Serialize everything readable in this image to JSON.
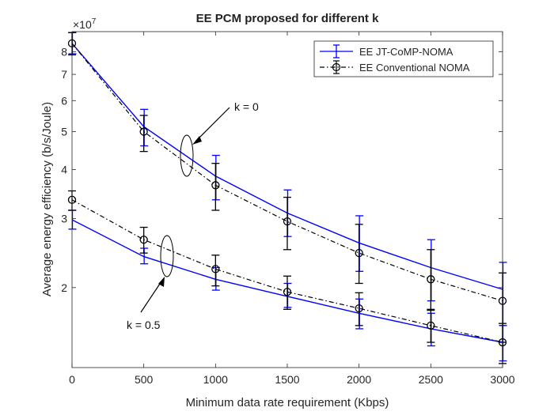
{
  "chart_data": {
    "type": "line",
    "title": "EE PCM proposed for different k",
    "xlabel": "Minimum data rate requirement (Kbps)",
    "ylabel": "Average energy efficiency (b/s/Joule)",
    "y_multiplier": "×10",
    "y_multiplier_exp": "7",
    "y_scale": "log",
    "xlim": [
      0,
      3000
    ],
    "ylim": [
      1.25,
      9.0
    ],
    "x_ticks": [
      0,
      500,
      1000,
      1500,
      2000,
      2500,
      3000
    ],
    "x_tick_labels": [
      "0",
      "500",
      "1000",
      "1500",
      "2000",
      "2500",
      "3000"
    ],
    "y_ticks": [
      2,
      3,
      4,
      5,
      6,
      7,
      8
    ],
    "y_tick_labels": [
      "2",
      "3",
      "4",
      "5",
      "6",
      "7",
      "8"
    ],
    "grid": false,
    "legend_position": "top-right",
    "x": [
      0,
      500,
      1000,
      1500,
      2000,
      2500,
      3000
    ],
    "series": [
      {
        "name": "EE JT-CoMP-NOMA",
        "group": "k = 0",
        "color": "#0000ff",
        "style": "solid",
        "marker": "none",
        "values": [
          8.4,
          5.15,
          3.85,
          3.1,
          2.6,
          2.25,
          1.98
        ],
        "err_low": [
          7.9,
          4.6,
          3.35,
          2.7,
          2.2,
          1.85,
          1.6
        ],
        "err_high": [
          8.95,
          5.7,
          4.35,
          3.55,
          3.05,
          2.65,
          2.32
        ]
      },
      {
        "name": "EE Conventional NOMA",
        "group": "k = 0",
        "color": "#000000",
        "style": "dashdot",
        "marker": "circle",
        "values": [
          8.4,
          5.0,
          3.65,
          2.95,
          2.45,
          2.1,
          1.85
        ],
        "err_low": [
          7.85,
          4.45,
          3.15,
          2.5,
          2.05,
          1.75,
          1.45
        ],
        "err_high": [
          8.95,
          5.5,
          4.15,
          3.4,
          2.9,
          2.5,
          2.18
        ]
      },
      {
        "name": "EE JT-CoMP-NOMA",
        "group": "k = 0.5",
        "color": "#0000ff",
        "style": "solid",
        "marker": "none",
        "values": [
          2.98,
          2.4,
          2.1,
          1.9,
          1.72,
          1.57,
          1.45
        ],
        "err_low": [
          2.82,
          2.3,
          1.97,
          1.78,
          1.57,
          1.42,
          1.3
        ],
        "err_high": [
          3.15,
          2.52,
          2.25,
          2.05,
          1.87,
          1.72,
          1.6
        ]
      },
      {
        "name": "EE Conventional NOMA",
        "group": "k = 0.5",
        "color": "#000000",
        "style": "dashdot",
        "marker": "circle",
        "values": [
          3.35,
          2.65,
          2.23,
          1.95,
          1.77,
          1.6,
          1.45
        ],
        "err_low": [
          3.15,
          2.45,
          2.02,
          1.76,
          1.6,
          1.45,
          1.28
        ],
        "err_high": [
          3.53,
          2.85,
          2.42,
          2.14,
          1.94,
          1.76,
          1.62
        ]
      }
    ],
    "legend": [
      "EE JT-CoMP-NOMA",
      "EE Conventional NOMA"
    ],
    "annotations": [
      "k = 0",
      "k = 0.5"
    ]
  }
}
